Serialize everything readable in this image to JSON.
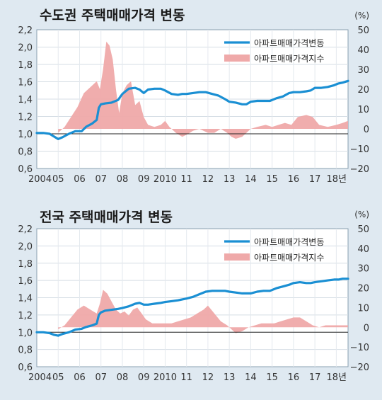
{
  "chart_data": [
    {
      "type": "line",
      "title": "수도권 주택매매가격 변동",
      "left_axis": {
        "ylim": [
          0.6,
          2.2
        ],
        "ticks": [
          "0,6",
          "0,8",
          "1,0",
          "1,2",
          "1,4",
          "1,6",
          "1,8",
          "2,0",
          "2,2"
        ],
        "values": [
          0.6,
          0.8,
          1.0,
          1.2,
          1.4,
          1.6,
          1.8,
          2.0,
          2.2
        ]
      },
      "right_axis": {
        "unit": "(%)",
        "ylim": [
          -20,
          50
        ],
        "ticks": [
          "−20",
          "−10",
          "0",
          "10",
          "20",
          "30",
          "40",
          "50"
        ],
        "values": [
          -20,
          -10,
          0,
          10,
          20,
          30,
          40,
          50
        ]
      },
      "x_ticks": [
        "2004",
        "05",
        "06",
        "07",
        "08",
        "09",
        "2010",
        "11",
        "12",
        "13",
        "14",
        "15",
        "16",
        "17",
        "18년"
      ],
      "x_tick_values": [
        2004,
        2005,
        2006,
        2007,
        2008,
        2009,
        2010,
        2011,
        2012,
        2013,
        2014,
        2015,
        2016,
        2017,
        2018
      ],
      "xlim": [
        2004,
        2018.55
      ],
      "grid": true,
      "legend_placement": "top-right",
      "series": [
        {
          "name": "아파트매매가격변동",
          "kind": "line",
          "axis": "left",
          "color": "#1a8fd3",
          "x": [
            2004.0,
            2004.3,
            2004.6,
            2004.8,
            2005.0,
            2005.2,
            2005.5,
            2005.8,
            2006.1,
            2006.3,
            2006.6,
            2006.8,
            2006.9,
            2007.0,
            2007.2,
            2007.5,
            2007.8,
            2008.0,
            2008.3,
            2008.6,
            2008.8,
            2009.0,
            2009.2,
            2009.5,
            2009.8,
            2010.0,
            2010.3,
            2010.6,
            2010.8,
            2011.0,
            2011.3,
            2011.6,
            2011.9,
            2012.2,
            2012.5,
            2012.8,
            2013.0,
            2013.3,
            2013.6,
            2013.8,
            2014.0,
            2014.3,
            2014.6,
            2014.9,
            2015.2,
            2015.5,
            2015.8,
            2016.0,
            2016.3,
            2016.6,
            2016.8,
            2017.0,
            2017.3,
            2017.6,
            2017.9,
            2018.1,
            2018.3,
            2018.55
          ],
          "values": [
            1.01,
            1.01,
            1.0,
            0.97,
            0.94,
            0.96,
            1.0,
            1.03,
            1.03,
            1.08,
            1.12,
            1.16,
            1.3,
            1.34,
            1.35,
            1.36,
            1.39,
            1.46,
            1.52,
            1.53,
            1.51,
            1.47,
            1.51,
            1.52,
            1.52,
            1.5,
            1.46,
            1.45,
            1.46,
            1.46,
            1.47,
            1.48,
            1.48,
            1.46,
            1.44,
            1.4,
            1.37,
            1.36,
            1.34,
            1.34,
            1.37,
            1.38,
            1.38,
            1.38,
            1.41,
            1.43,
            1.47,
            1.48,
            1.48,
            1.49,
            1.5,
            1.53,
            1.53,
            1.54,
            1.56,
            1.58,
            1.59,
            1.61
          ]
        },
        {
          "name": "아파트매매가격지수",
          "kind": "area",
          "axis": "right",
          "color": "#efa9a9",
          "x": [
            2005.0,
            2005.3,
            2005.6,
            2005.9,
            2006.2,
            2006.5,
            2006.8,
            2006.95,
            2007.1,
            2007.25,
            2007.4,
            2007.55,
            2007.7,
            2007.85,
            2008.0,
            2008.2,
            2008.4,
            2008.6,
            2008.8,
            2009.0,
            2009.2,
            2009.5,
            2009.8,
            2010.0,
            2010.2,
            2010.5,
            2010.8,
            2011.0,
            2011.3,
            2011.6,
            2012.0,
            2012.3,
            2012.6,
            2012.9,
            2013.1,
            2013.3,
            2013.6,
            2013.8,
            2014.0,
            2014.3,
            2014.7,
            2015.0,
            2015.3,
            2015.6,
            2015.9,
            2016.2,
            2016.6,
            2016.9,
            2017.2,
            2017.6,
            2018.0,
            2018.3,
            2018.55
          ],
          "values": [
            -2,
            1,
            6,
            11,
            18,
            21,
            24,
            20,
            30,
            44,
            42,
            35,
            20,
            8,
            18,
            22,
            24,
            12,
            14,
            6,
            2,
            1,
            2,
            4,
            1,
            -2,
            -4,
            -3,
            -1,
            0,
            -2,
            -2,
            0,
            -2,
            -4,
            -5,
            -4,
            -2,
            0,
            1,
            2,
            1,
            2,
            3,
            2,
            6,
            7,
            6,
            2,
            1,
            2,
            3,
            4
          ]
        }
      ]
    },
    {
      "type": "line",
      "title": "전국 주택매매가격 변동",
      "left_axis": {
        "ylim": [
          0.6,
          2.2
        ],
        "ticks": [
          "0,6",
          "0,8",
          "1,0",
          "1,2",
          "1,4",
          "1,6",
          "1,8",
          "2,0",
          "2,2"
        ],
        "values": [
          0.6,
          0.8,
          1.0,
          1.2,
          1.4,
          1.6,
          1.8,
          2.0,
          2.2
        ]
      },
      "right_axis": {
        "unit": "(%)",
        "ylim": [
          -20,
          50
        ],
        "ticks": [
          "−20",
          "−10",
          "0",
          "10",
          "20",
          "30",
          "40",
          "50"
        ],
        "values": [
          -20,
          -10,
          0,
          10,
          20,
          30,
          40,
          50
        ]
      },
      "x_ticks": [
        "2004",
        "05",
        "06",
        "07",
        "08",
        "09",
        "2010",
        "11",
        "12",
        "13",
        "14",
        "15",
        "16",
        "17",
        "18년"
      ],
      "x_tick_values": [
        2004,
        2005,
        2006,
        2007,
        2008,
        2009,
        2010,
        2011,
        2012,
        2013,
        2014,
        2015,
        2016,
        2017,
        2018
      ],
      "xlim": [
        2004,
        2018.55
      ],
      "grid": true,
      "legend_placement": "top-right",
      "series": [
        {
          "name": "아파트매매가격변동",
          "kind": "line",
          "axis": "left",
          "color": "#1a8fd3",
          "x": [
            2004.0,
            2004.3,
            2004.6,
            2004.8,
            2005.0,
            2005.2,
            2005.5,
            2005.8,
            2006.1,
            2006.3,
            2006.6,
            2006.8,
            2006.9,
            2007.0,
            2007.2,
            2007.5,
            2007.8,
            2008.0,
            2008.3,
            2008.6,
            2008.8,
            2009.0,
            2009.2,
            2009.5,
            2009.8,
            2010.0,
            2010.3,
            2010.6,
            2010.8,
            2011.0,
            2011.3,
            2011.6,
            2011.9,
            2012.2,
            2012.5,
            2012.8,
            2013.0,
            2013.3,
            2013.6,
            2013.8,
            2014.0,
            2014.3,
            2014.6,
            2014.9,
            2015.2,
            2015.5,
            2015.8,
            2016.0,
            2016.3,
            2016.6,
            2016.8,
            2017.0,
            2017.3,
            2017.6,
            2017.9,
            2018.1,
            2018.3,
            2018.55
          ],
          "values": [
            1.0,
            1.0,
            0.99,
            0.97,
            0.96,
            0.98,
            1.0,
            1.03,
            1.04,
            1.06,
            1.08,
            1.1,
            1.2,
            1.23,
            1.25,
            1.26,
            1.27,
            1.28,
            1.3,
            1.33,
            1.34,
            1.32,
            1.32,
            1.33,
            1.34,
            1.35,
            1.36,
            1.37,
            1.38,
            1.39,
            1.41,
            1.44,
            1.47,
            1.48,
            1.48,
            1.48,
            1.47,
            1.46,
            1.45,
            1.45,
            1.45,
            1.47,
            1.48,
            1.48,
            1.51,
            1.53,
            1.55,
            1.57,
            1.58,
            1.57,
            1.57,
            1.58,
            1.59,
            1.6,
            1.61,
            1.61,
            1.62,
            1.62
          ]
        },
        {
          "name": "아파트매매가격지수",
          "kind": "area",
          "axis": "right",
          "color": "#efa9a9",
          "x": [
            2005.0,
            2005.3,
            2005.6,
            2005.9,
            2006.2,
            2006.5,
            2006.8,
            2006.95,
            2007.1,
            2007.3,
            2007.5,
            2007.7,
            2007.9,
            2008.1,
            2008.3,
            2008.5,
            2008.7,
            2008.9,
            2009.1,
            2009.4,
            2009.7,
            2010.0,
            2010.3,
            2010.6,
            2010.9,
            2011.2,
            2011.5,
            2011.8,
            2012.0,
            2012.3,
            2012.6,
            2012.9,
            2013.1,
            2013.3,
            2013.6,
            2013.9,
            2014.2,
            2014.5,
            2014.8,
            2015.1,
            2015.4,
            2015.7,
            2016.0,
            2016.3,
            2016.6,
            2016.9,
            2017.2,
            2017.5,
            2017.8,
            2018.1,
            2018.35,
            2018.55
          ],
          "values": [
            -1,
            1,
            5,
            9,
            11,
            9,
            7,
            12,
            19,
            17,
            13,
            9,
            7,
            8,
            6,
            9,
            10,
            7,
            4,
            2,
            2,
            2,
            2,
            3,
            4,
            5,
            7,
            9,
            11,
            7,
            3,
            1,
            -1,
            -3,
            -2,
            0,
            1,
            2,
            2,
            2,
            3,
            4,
            5,
            5,
            3,
            1,
            0,
            1,
            1,
            1,
            1,
            1
          ]
        }
      ]
    }
  ]
}
